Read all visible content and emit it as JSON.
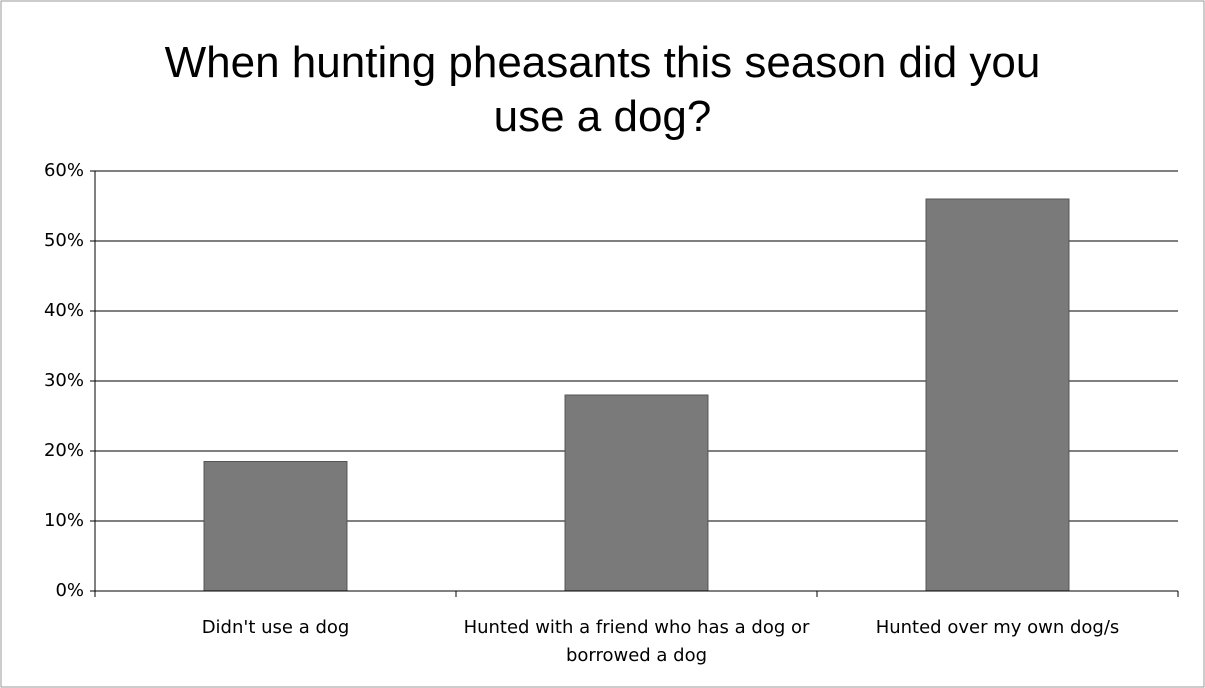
{
  "chart_data": {
    "type": "bar",
    "title": "When hunting pheasants this season did you use a dog?",
    "categories": [
      "Didn't use a dog",
      "Hunted with a friend who has a dog or borrowed a dog",
      "Hunted over my own dog/s"
    ],
    "values": [
      18.5,
      28,
      56
    ],
    "color": "#7a7a7a",
    "ylim": [
      0,
      60
    ],
    "yticks": [
      {
        "value": 0,
        "label": "0%"
      },
      {
        "value": 10,
        "label": "10%"
      },
      {
        "value": 20,
        "label": "20%"
      },
      {
        "value": 30,
        "label": "30%"
      },
      {
        "value": 40,
        "label": "40%"
      },
      {
        "value": 50,
        "label": "50%"
      },
      {
        "value": 60,
        "label": "60%"
      }
    ],
    "grid": true
  }
}
